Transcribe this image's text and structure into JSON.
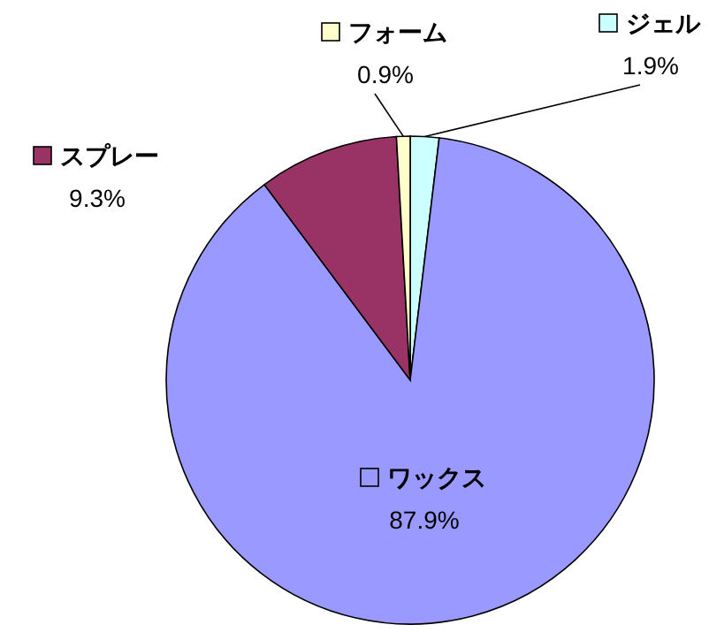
{
  "chart_data": {
    "type": "pie",
    "categories": [
      "ジェル",
      "ワックス",
      "スプレー",
      "フォーム"
    ],
    "values": [
      1.9,
      87.9,
      9.3,
      0.9
    ],
    "value_labels": [
      "1.9%",
      "87.9%",
      "9.3%",
      "0.9%"
    ],
    "colors": [
      "#ccffff",
      "#9999ff",
      "#993366",
      "#ffffcc"
    ],
    "legend": "top"
  }
}
